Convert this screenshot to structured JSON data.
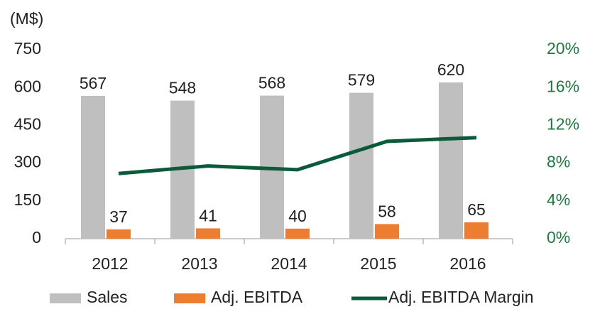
{
  "chart_data": {
    "type": "bar_line",
    "y_axis_label": "(M$)",
    "categories": [
      "2012",
      "2013",
      "2014",
      "2015",
      "2016"
    ],
    "series": [
      {
        "name": "Sales",
        "type": "bar",
        "color": "#bfbfbf",
        "values": [
          567,
          548,
          568,
          579,
          620
        ]
      },
      {
        "name": "Adj. EBITDA",
        "type": "bar",
        "color": "#ed7d31",
        "values": [
          37,
          41,
          40,
          58,
          65
        ]
      },
      {
        "name": "Adj. EBITDA Margin",
        "type": "line",
        "axis": "y2",
        "color": "#0b5a3a",
        "values": [
          6.9,
          7.7,
          7.3,
          10.3,
          10.7
        ]
      }
    ],
    "ylim": [
      0,
      750
    ],
    "yticks": [
      0,
      150,
      300,
      450,
      600,
      750
    ],
    "y2lim": [
      0,
      20
    ],
    "y2ticks": [
      {
        "value": 0,
        "label": "0%"
      },
      {
        "value": 4,
        "label": "4%"
      },
      {
        "value": 8,
        "label": "8%"
      },
      {
        "value": 12,
        "label": "12%"
      },
      {
        "value": 16,
        "label": "16%"
      },
      {
        "value": 20,
        "label": "20%"
      }
    ],
    "y2_color": "#1e7a3c",
    "legend": "bottom"
  }
}
